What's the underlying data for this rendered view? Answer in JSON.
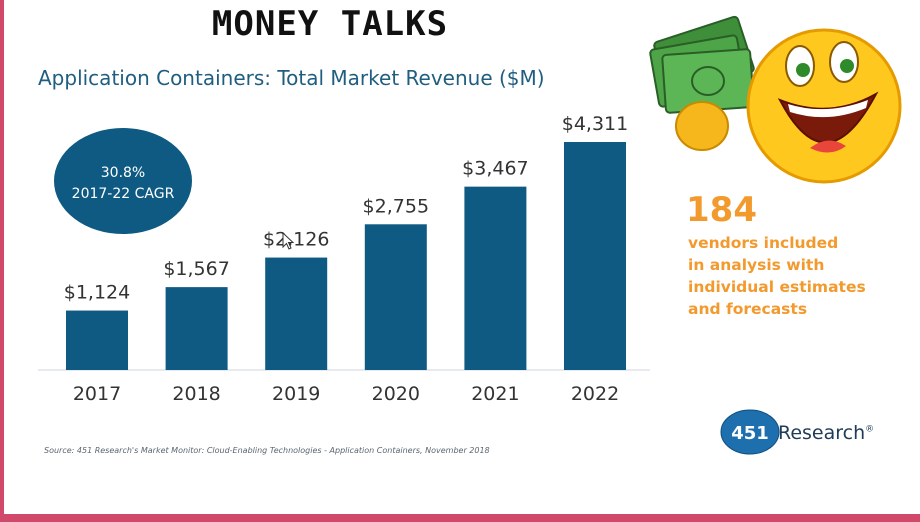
{
  "headline": "MONEY TALKS",
  "source": "Source: 451 Research's Market Monitor: Cloud-Enabling Technologies - Application Containers, November 2018",
  "callout": {
    "value": "184",
    "text_lines": [
      "vendors included",
      "in analysis with",
      "individual estimates",
      "and forecasts"
    ]
  },
  "logo": {
    "number": "451",
    "name": "Research",
    "mark": "®"
  },
  "badge": {
    "line1": "30.8%",
    "line2": "2017-22 CAGR"
  },
  "colors": {
    "bar": "#0e5a82",
    "badge": "#0e5a82",
    "accent": "#f29a2e",
    "title": "#1f5e80",
    "edge": "#d0486a"
  },
  "icons": [
    "money-bills-icon",
    "grinning-emoji-icon",
    "mouse-cursor-icon"
  ],
  "chart_data": {
    "type": "bar",
    "title": "Application Containers: Total Market Revenue ($M)",
    "categories": [
      "2017",
      "2018",
      "2019",
      "2020",
      "2021",
      "2022"
    ],
    "values": [
      1124,
      1567,
      2126,
      2755,
      3467,
      4311
    ],
    "value_labels": [
      "$1,124",
      "$1,567",
      "$2,126",
      "$2,755",
      "$3,467",
      "$4,311"
    ],
    "ylim": [
      0,
      4311
    ],
    "grid": false,
    "legend": "none"
  }
}
